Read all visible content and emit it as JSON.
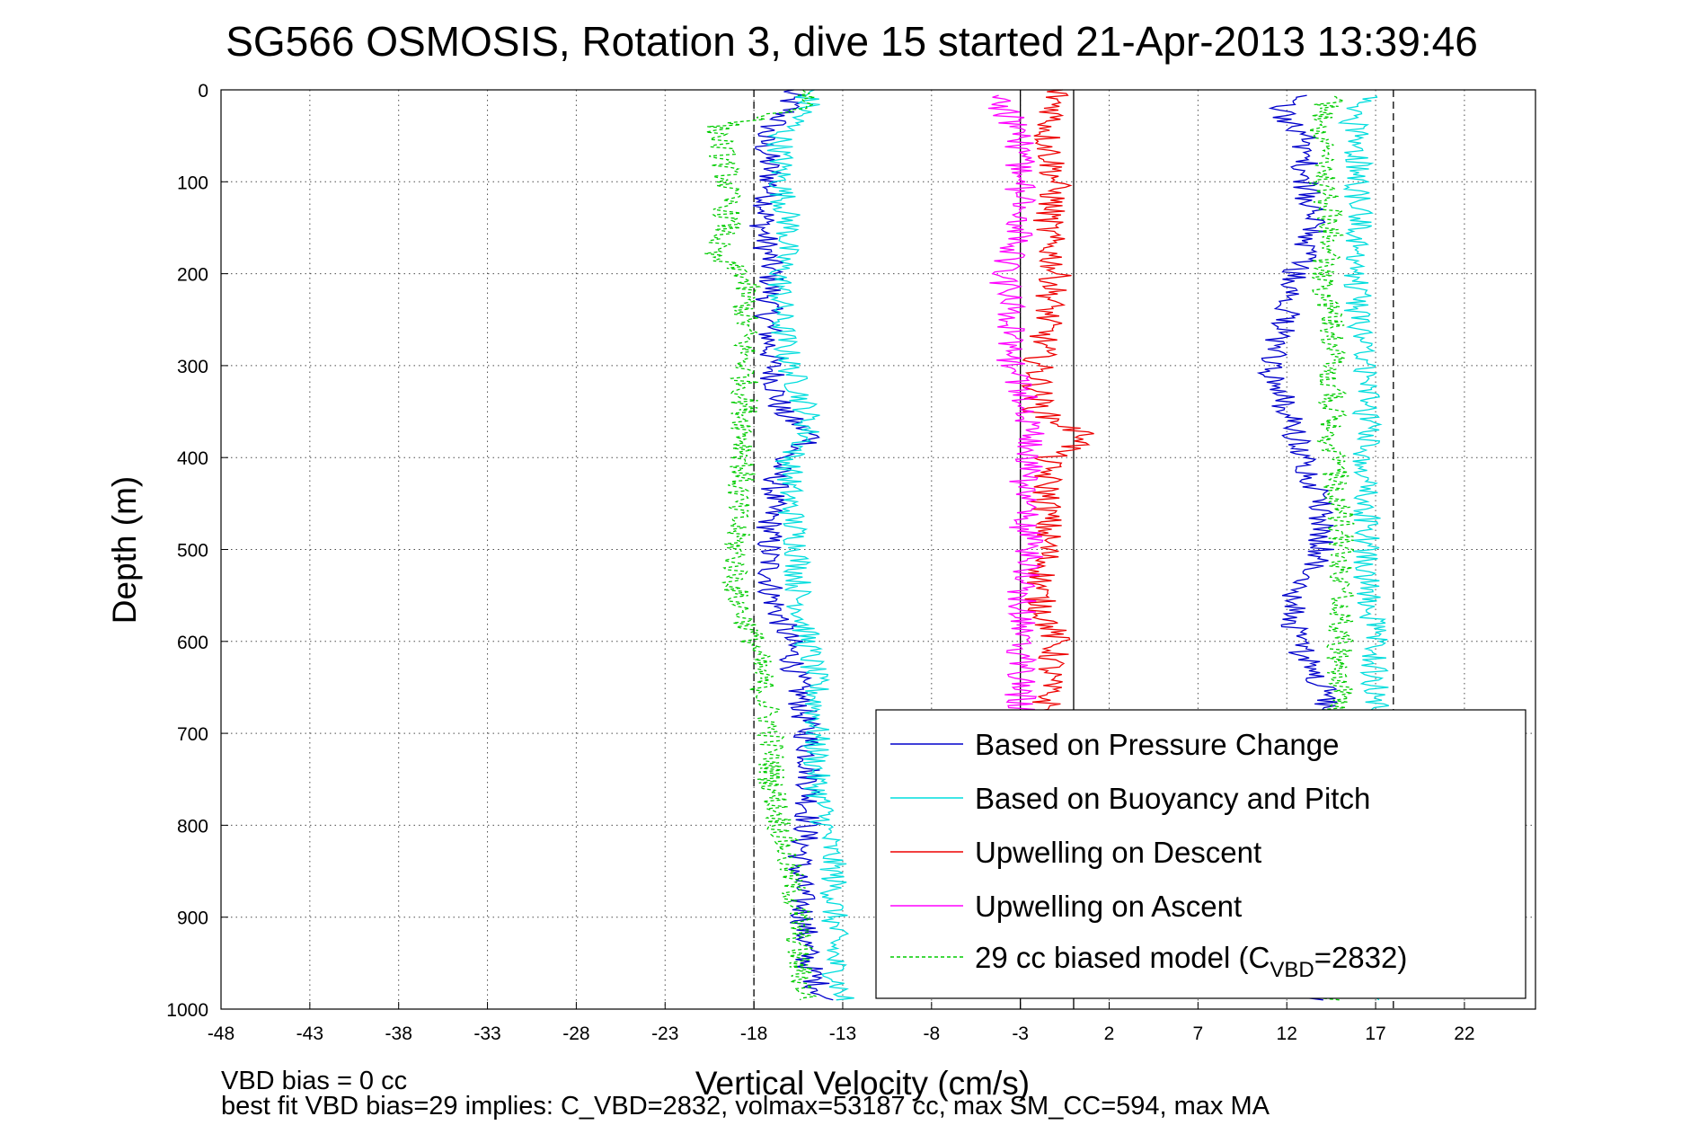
{
  "chart_data": {
    "type": "line",
    "title": "SG566 OSMOSIS, Rotation 3, dive 15 started 21-Apr-2013 13:39:46",
    "xlabel": "Vertical Velocity (cm/s)",
    "ylabel": "Depth (m)",
    "xlim": [
      -48,
      26
    ],
    "ylim": [
      1000,
      0
    ],
    "y_reversed": true,
    "x_ticks": [
      -48,
      -43,
      -38,
      -33,
      -28,
      -23,
      -18,
      -13,
      -8,
      -3,
      2,
      7,
      12,
      17,
      22
    ],
    "x_tick_labels": [
      "-48",
      "-43",
      "-38",
      "-33",
      "-28",
      "-23",
      "-18",
      "-13",
      "-8",
      "-3",
      "2",
      "7",
      "12",
      "17",
      "22"
    ],
    "y_ticks": [
      0,
      100,
      200,
      300,
      400,
      500,
      600,
      700,
      800,
      900,
      1000
    ],
    "y_tick_labels": [
      "0",
      "100",
      "200",
      "300",
      "400",
      "500",
      "600",
      "700",
      "800",
      "900",
      "1000"
    ],
    "grid": true,
    "legend_position": "lower-right",
    "reference_lines": [
      {
        "x": -18,
        "style": "dashed"
      },
      {
        "x": 18,
        "style": "dashed"
      },
      {
        "x": 0,
        "style": "solid"
      },
      {
        "x": -3,
        "style": "solid"
      }
    ],
    "series": [
      {
        "name": "Based on Pressure Change",
        "color": "#0000cc",
        "style": "solid",
        "depth": [
          0,
          20,
          50,
          100,
          150,
          200,
          250,
          300,
          350,
          380,
          400,
          450,
          500,
          550,
          600,
          650,
          700,
          750,
          800,
          850,
          900,
          950,
          990
        ],
        "velocity": [
          -16,
          -16,
          -17.5,
          -17,
          -17.5,
          -17,
          -17.2,
          -17,
          -16.5,
          -14.5,
          -16.5,
          -17,
          -17.2,
          -17,
          -16,
          -15.5,
          -15,
          -14.8,
          -15,
          -15.5,
          -15.2,
          -15,
          -14
        ],
        "ascent_depth": [
          990,
          950,
          900,
          850,
          800,
          750,
          700,
          650,
          600,
          550,
          500,
          450,
          400,
          350,
          300,
          250,
          200,
          150,
          100,
          50,
          20,
          5
        ],
        "ascent_velocity": [
          14,
          14,
          14.5,
          14.5,
          14.5,
          14.5,
          14.5,
          14,
          12.5,
          12.5,
          14,
          14,
          13,
          12,
          11,
          12,
          12.5,
          13.5,
          13,
          13,
          11.5,
          13
        ]
      },
      {
        "name": "Based on Buoyancy and Pitch",
        "color": "#00dddd",
        "style": "solid",
        "depth": [
          0,
          20,
          50,
          100,
          150,
          200,
          250,
          300,
          350,
          380,
          400,
          450,
          500,
          550,
          600,
          650,
          700,
          750,
          800,
          850,
          900,
          950,
          990
        ],
        "velocity": [
          -15,
          -15,
          -16.5,
          -16.5,
          -16,
          -16.5,
          -16.5,
          -16,
          -15,
          -15,
          -16,
          -16,
          -15.5,
          -15.5,
          -15,
          -14.5,
          -14.5,
          -14.5,
          -14,
          -13.5,
          -13.5,
          -13.5,
          -13
        ],
        "ascent_depth": [
          990,
          950,
          900,
          850,
          800,
          750,
          700,
          650,
          600,
          550,
          500,
          450,
          400,
          350,
          300,
          250,
          200,
          150,
          100,
          50,
          20,
          5
        ],
        "ascent_velocity": [
          17,
          17,
          17,
          17,
          16.5,
          16.5,
          17,
          17,
          17,
          16.5,
          16.5,
          16.5,
          16.5,
          16.5,
          16.5,
          16,
          16,
          16,
          16,
          16,
          15.5,
          17
        ]
      },
      {
        "name": "Upwelling on Descent",
        "color": "#ee0000",
        "style": "solid",
        "depth": [
          0,
          20,
          50,
          100,
          150,
          200,
          250,
          300,
          350,
          380,
          400,
          450,
          500,
          550,
          600,
          650,
          690
        ],
        "velocity": [
          -1,
          -1,
          -1.5,
          -1,
          -1.5,
          -1,
          -1.5,
          -2,
          -2,
          1,
          -1.5,
          -1.5,
          -1.5,
          -2,
          -1,
          -1.5,
          -1.5
        ]
      },
      {
        "name": "Upwelling on Ascent",
        "color": "#ff00ff",
        "style": "solid",
        "depth": [
          690,
          650,
          600,
          550,
          500,
          450,
          400,
          350,
          300,
          250,
          200,
          150,
          100,
          50,
          20,
          5
        ],
        "velocity": [
          -3,
          -3,
          -3,
          -3,
          -2.5,
          -3,
          -2.5,
          -2.5,
          -3.5,
          -3.5,
          -4,
          -3,
          -3,
          -3,
          -4,
          -4
        ]
      },
      {
        "name": "29 cc biased model (C",
        "legend_subscript": "VBD",
        "legend_suffix": "=2832)",
        "color": "#00cc00",
        "style": "dashed",
        "depth": [
          0,
          20,
          40,
          100,
          150,
          180,
          200,
          250,
          300,
          350,
          400,
          450,
          500,
          550,
          600,
          650,
          700,
          750,
          800,
          850,
          900,
          950,
          990
        ],
        "velocity": [
          -15,
          -15,
          -20,
          -19.5,
          -19.5,
          -20.5,
          -18.5,
          -18.5,
          -18.5,
          -18.5,
          -18.5,
          -19,
          -19,
          -19,
          -18,
          -17.5,
          -17,
          -17,
          -16.5,
          -16,
          -15.5,
          -15.5,
          -15
        ],
        "ascent_depth": [
          990,
          950,
          900,
          850,
          800,
          750,
          700,
          650,
          600,
          550,
          500,
          450,
          400,
          350,
          300,
          250,
          200,
          150,
          100,
          50,
          20,
          5
        ],
        "ascent_velocity": [
          14.5,
          14.5,
          14.5,
          14.5,
          14.5,
          14.5,
          14.5,
          15,
          15,
          15,
          15,
          15,
          14.5,
          14.5,
          14.5,
          14.5,
          14,
          14.5,
          14,
          14,
          14,
          15
        ]
      }
    ],
    "annotations": [
      "VBD bias = 0 cc",
      "best fit VBD bias=29 implies: C_VBD=2832, volmax=53187 cc, max SM_CC=594, max MA"
    ]
  }
}
